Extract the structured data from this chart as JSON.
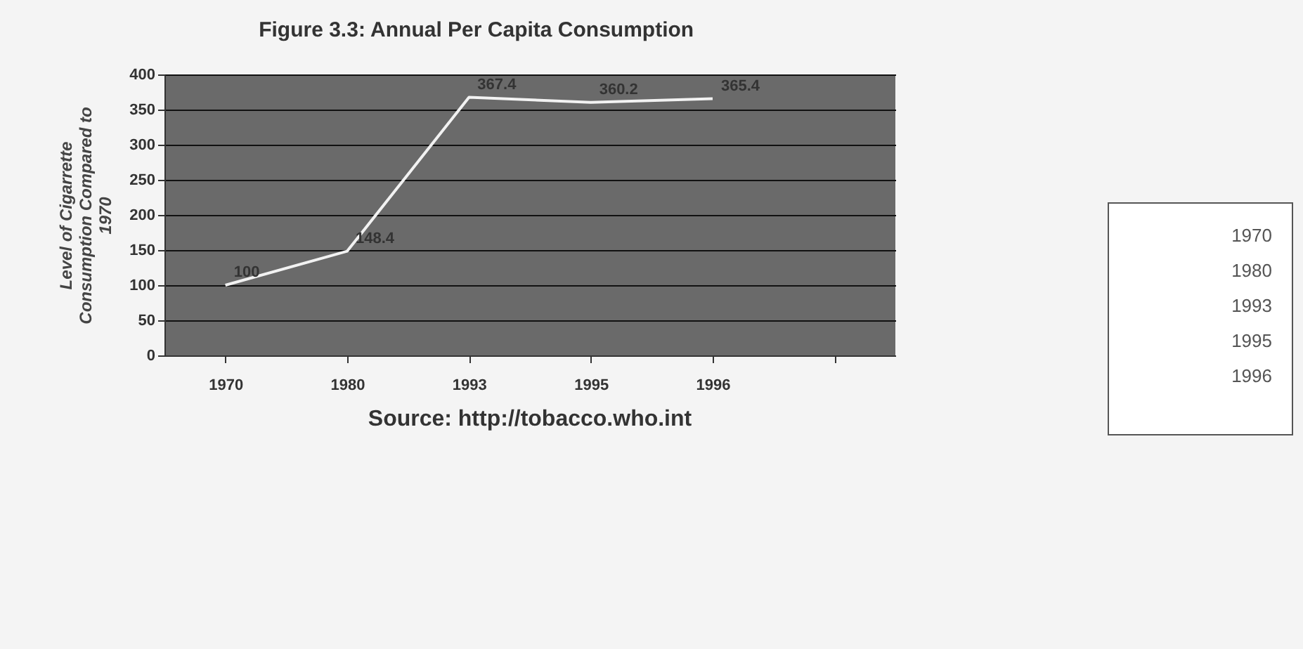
{
  "chart_data": {
    "type": "line",
    "title": "Figure 3.3: Annual Per Capita Consumption",
    "ylabel": "Level of Cigarrette Consumption Compared to 1970",
    "annotations": [
      "Source:  http://tobacco.who.int"
    ],
    "categories": [
      "1970",
      "1980",
      "1993",
      "1995",
      "1996",
      null
    ],
    "series": [
      {
        "color": "#f2f2f2",
        "values": [
          100,
          148.4,
          367.4,
          360.2,
          365.4,
          null
        ]
      }
    ],
    "ylim": [
      0,
      400
    ],
    "yticks": [
      0,
      50,
      100,
      150,
      200,
      250,
      300,
      350,
      400
    ],
    "grid": "y",
    "data_labels": true,
    "marker": "none",
    "line_style": "solid"
  }
}
